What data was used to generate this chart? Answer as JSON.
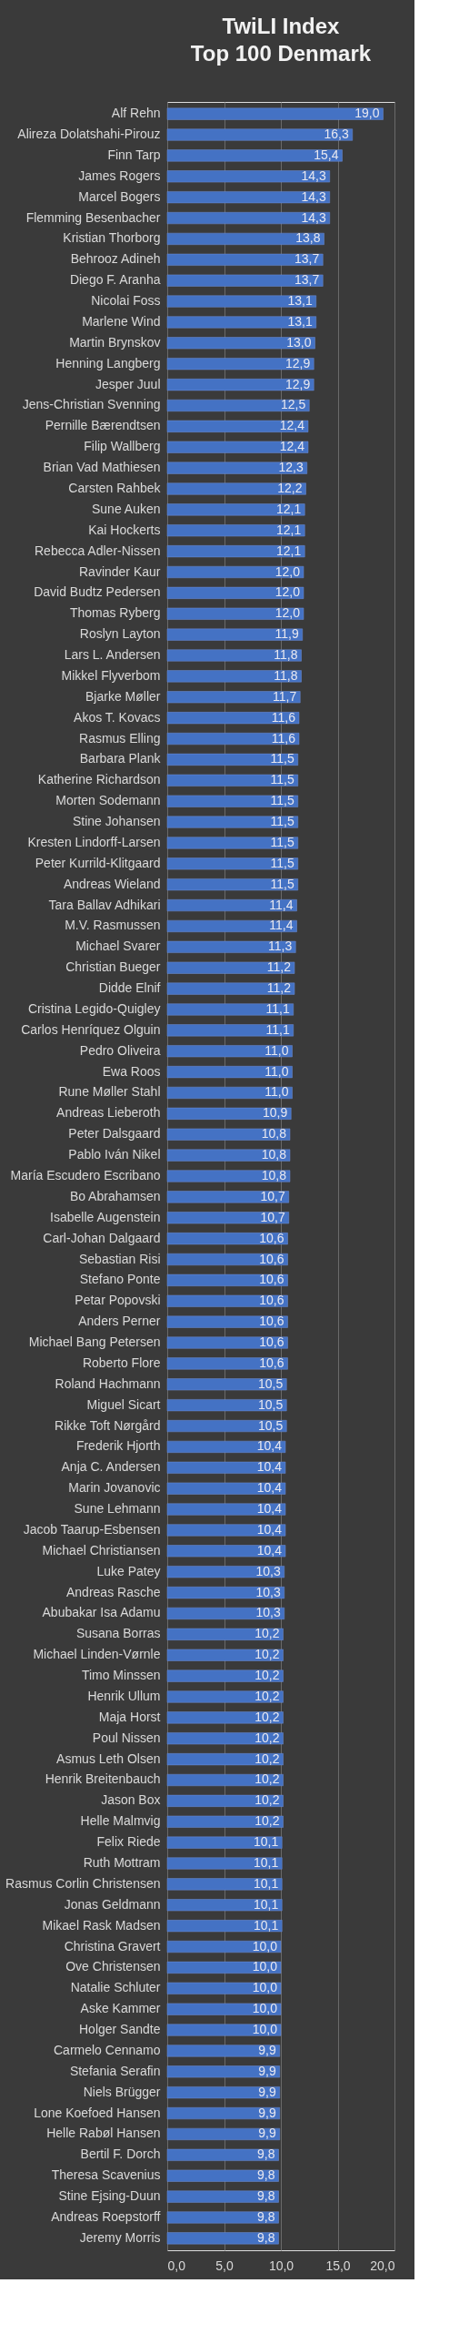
{
  "chart_data": {
    "type": "bar",
    "orientation": "horizontal",
    "title": "TwiLI Index Top 100 Denmark",
    "categories": [
      "Alf Rehn",
      "Alireza Dolatshahi-Pirouz",
      "Finn Tarp",
      "James Rogers",
      "Marcel Bogers",
      "Flemming Besenbacher",
      "Kristian Thorborg",
      "Behrooz Adineh",
      "Diego F. Aranha",
      "Nicolai Foss",
      "Marlene Wind",
      "Martin Brynskov",
      "Henning Langberg",
      "Jesper Juul",
      "Jens-Christian Svenning",
      "Pernille Bærendtsen",
      "Filip Wallberg",
      "Brian Vad Mathiesen",
      "Carsten Rahbek",
      "Sune Auken",
      "Kai Hockerts",
      "Rebecca Adler-Nissen",
      "Ravinder Kaur",
      "David Budtz Pedersen",
      "Thomas Ryberg",
      "Roslyn Layton",
      "Lars L. Andersen",
      "Mikkel Flyverbom",
      "Bjarke Møller",
      "Akos T. Kovacs",
      "Rasmus Elling",
      "Barbara Plank",
      "Katherine Richardson",
      "Morten Sodemann",
      "Stine Johansen",
      "Kresten Lindorff-Larsen",
      "Peter Kurrild-Klitgaard",
      "Andreas Wieland",
      "Tara Ballav Adhikari",
      "M.V. Rasmussen",
      "Michael Svarer",
      "Christian Bueger",
      "Didde Elnif",
      "Cristina Legido-Quigley",
      "Carlos Henríquez Olguin",
      "Pedro Oliveira",
      "Ewa Roos",
      "Rune Møller Stahl",
      "Andreas Lieberoth",
      "Peter Dalsgaard",
      "Pablo Iván Nikel",
      "María Escudero Escribano",
      "Bo Abrahamsen",
      "Isabelle Augenstein",
      "Carl-Johan Dalgaard",
      "Sebastian Risi",
      "Stefano Ponte",
      "Petar Popovski",
      "Anders Perner",
      "Michael Bang Petersen",
      "Roberto Flore",
      "Roland Hachmann",
      "Miguel Sicart",
      "Rikke Toft Nørgård",
      "Frederik Hjorth",
      "Anja C. Andersen",
      "Marin Jovanovic",
      "Sune Lehmann",
      "Jacob Taarup-Esbensen",
      "Michael Christiansen",
      "Luke Patey",
      "Andreas Rasche",
      "Abubakar Isa Adamu",
      "Susana Borras",
      "Michael Linden-Vørnle",
      "Timo Minssen",
      "Henrik Ullum",
      "Maja Horst",
      "Poul Nissen",
      "Asmus Leth Olsen",
      "Henrik Breitenbauch",
      "Jason Box",
      "Helle Malmvig",
      "Felix Riede",
      "Ruth Mottram",
      "Rasmus Corlin Christensen",
      "Jonas Geldmann",
      "Mikael Rask Madsen",
      "Christina Gravert",
      "Ove Christensen",
      "Natalie Schluter",
      "Aske Kammer",
      "Holger Sandte",
      "Carmelo Cennamo",
      "Stefania Serafin",
      "Niels Brügger",
      "Lone Koefoed Hansen",
      "Helle Rabøl Hansen",
      "Bertil F. Dorch",
      "Theresa Scavenius",
      "Stine Ejsing-Duun",
      "Andreas Roepstorff",
      "Jeremy Morris"
    ],
    "values": [
      19.0,
      16.3,
      15.4,
      14.3,
      14.3,
      14.3,
      13.8,
      13.7,
      13.7,
      13.1,
      13.1,
      13.0,
      12.9,
      12.9,
      12.5,
      12.4,
      12.4,
      12.3,
      12.2,
      12.1,
      12.1,
      12.1,
      12.0,
      12.0,
      12.0,
      11.9,
      11.8,
      11.8,
      11.7,
      11.6,
      11.6,
      11.5,
      11.5,
      11.5,
      11.5,
      11.5,
      11.5,
      11.5,
      11.4,
      11.4,
      11.3,
      11.2,
      11.2,
      11.1,
      11.1,
      11.0,
      11.0,
      11.0,
      10.9,
      10.8,
      10.8,
      10.8,
      10.7,
      10.7,
      10.6,
      10.6,
      10.6,
      10.6,
      10.6,
      10.6,
      10.6,
      10.5,
      10.5,
      10.5,
      10.4,
      10.4,
      10.4,
      10.4,
      10.4,
      10.4,
      10.3,
      10.3,
      10.3,
      10.2,
      10.2,
      10.2,
      10.2,
      10.2,
      10.2,
      10.2,
      10.2,
      10.2,
      10.2,
      10.1,
      10.1,
      10.1,
      10.1,
      10.1,
      10.0,
      10.0,
      10.0,
      10.0,
      10.0,
      9.9,
      9.9,
      9.9,
      9.9,
      9.9,
      9.8,
      9.8,
      9.8,
      9.8,
      9.8
    ],
    "value_labels": [
      "19,0",
      "16,3",
      "15,4",
      "14,3",
      "14,3",
      "14,3",
      "13,8",
      "13,7",
      "13,7",
      "13,1",
      "13,1",
      "13,0",
      "12,9",
      "12,9",
      "12,5",
      "12,4",
      "12,4",
      "12,3",
      "12,2",
      "12,1",
      "12,1",
      "12,1",
      "12,0",
      "12,0",
      "12,0",
      "11,9",
      "11,8",
      "11,8",
      "11,7",
      "11,6",
      "11,6",
      "11,5",
      "11,5",
      "11,5",
      "11,5",
      "11,5",
      "11,5",
      "11,5",
      "11,4",
      "11,4",
      "11,3",
      "11,2",
      "11,2",
      "11,1",
      "11,1",
      "11,0",
      "11,0",
      "11,0",
      "10,9",
      "10,8",
      "10,8",
      "10,8",
      "10,7",
      "10,7",
      "10,6",
      "10,6",
      "10,6",
      "10,6",
      "10,6",
      "10,6",
      "10,6",
      "10,5",
      "10,5",
      "10,5",
      "10,4",
      "10,4",
      "10,4",
      "10,4",
      "10,4",
      "10,4",
      "10,3",
      "10,3",
      "10,3",
      "10,2",
      "10,2",
      "10,2",
      "10,2",
      "10,2",
      "10,2",
      "10,2",
      "10,2",
      "10,2",
      "10,2",
      "10,1",
      "10,1",
      "10,1",
      "10,1",
      "10,1",
      "10,0",
      "10,0",
      "10,0",
      "10,0",
      "10,0",
      "9,9",
      "9,9",
      "9,9",
      "9,9",
      "9,9",
      "9,8",
      "9,8",
      "9,8",
      "9,8",
      "9,8"
    ],
    "color": "#4472c4",
    "xlim": [
      0,
      20
    ],
    "xticks": [
      {
        "value": 0,
        "label": "0,0"
      },
      {
        "value": 5,
        "label": "5,0"
      },
      {
        "value": 10,
        "label": "10,0"
      },
      {
        "value": 15,
        "label": "15,0"
      },
      {
        "value": 20,
        "label": "20,0"
      }
    ],
    "grid": "x"
  }
}
